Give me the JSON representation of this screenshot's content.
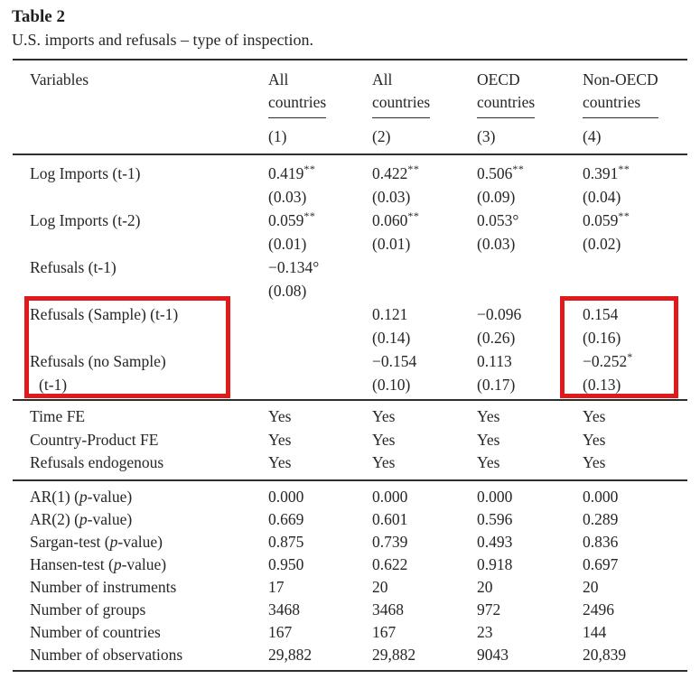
{
  "page": {
    "title": "Table 2",
    "caption": "U.S. imports and refusals – type of inspection."
  },
  "header": {
    "variables": "Variables",
    "cols": [
      {
        "line1": "All",
        "line2": "countries",
        "num": "(1)"
      },
      {
        "line1": "All",
        "line2": "countries",
        "num": "(2)"
      },
      {
        "line1": "OECD",
        "line2": "countries",
        "num": "(3)"
      },
      {
        "line1": "Non-OECD",
        "line2": "countries",
        "num": "(4)"
      }
    ]
  },
  "coef_rows": [
    {
      "label": "Log Imports (t-1)",
      "label2": "",
      "cells": [
        {
          "coef": "0.419",
          "sup": "**",
          "se": "(0.03)"
        },
        {
          "coef": "0.422",
          "sup": "**",
          "se": "(0.03)"
        },
        {
          "coef": "0.506",
          "sup": "**",
          "se": "(0.09)"
        },
        {
          "coef": "0.391",
          "sup": "**",
          "se": "(0.04)"
        }
      ]
    },
    {
      "label": "Log Imports (t-2)",
      "label2": "",
      "cells": [
        {
          "coef": "0.059",
          "sup": "**",
          "se": "(0.01)"
        },
        {
          "coef": "0.060",
          "sup": "**",
          "se": "(0.01)"
        },
        {
          "coef": "0.053°",
          "sup": "",
          "se": "(0.03)"
        },
        {
          "coef": "0.059",
          "sup": "**",
          "se": "(0.02)"
        }
      ]
    },
    {
      "label": "Refusals (t-1)",
      "label2": "",
      "cells": [
        {
          "coef": "−0.134°",
          "sup": "",
          "se": "(0.08)"
        },
        {
          "coef": "",
          "sup": "",
          "se": ""
        },
        {
          "coef": "",
          "sup": "",
          "se": ""
        },
        {
          "coef": "",
          "sup": "",
          "se": ""
        }
      ]
    },
    {
      "label": "Refusals (Sample) (t-1)",
      "label2": "",
      "cells": [
        {
          "coef": "",
          "sup": "",
          "se": ""
        },
        {
          "coef": "0.121",
          "sup": "",
          "se": "(0.14)"
        },
        {
          "coef": "−0.096",
          "sup": "",
          "se": "(0.26)"
        },
        {
          "coef": "0.154",
          "sup": "",
          "se": "(0.16)"
        }
      ]
    },
    {
      "label": "Refusals (no Sample)",
      "label2": "(t-1)",
      "cells": [
        {
          "coef": "",
          "sup": "",
          "se": ""
        },
        {
          "coef": "−0.154",
          "sup": "",
          "se": "(0.10)"
        },
        {
          "coef": "0.113",
          "sup": "",
          "se": "(0.17)"
        },
        {
          "coef": "−0.252",
          "sup": "*",
          "se": "(0.13)"
        }
      ]
    }
  ],
  "fe_rows": [
    {
      "label": "Time FE",
      "values": [
        "Yes",
        "Yes",
        "Yes",
        "Yes"
      ]
    },
    {
      "label": "Country-Product FE",
      "values": [
        "Yes",
        "Yes",
        "Yes",
        "Yes"
      ]
    },
    {
      "label": "Refusals endogenous",
      "values": [
        "Yes",
        "Yes",
        "Yes",
        "Yes"
      ]
    }
  ],
  "stat_rows": [
    {
      "pre": "AR(1) (",
      "it": "p",
      "post": "-value)",
      "values": [
        "0.000",
        "0.000",
        "0.000",
        "0.000"
      ]
    },
    {
      "pre": "AR(2) (",
      "it": "p",
      "post": "-value)",
      "values": [
        "0.669",
        "0.601",
        "0.596",
        "0.289"
      ]
    },
    {
      "pre": "Sargan-test (",
      "it": "p",
      "post": "-value)",
      "values": [
        "0.875",
        "0.739",
        "0.493",
        "0.836"
      ]
    },
    {
      "pre": "Hansen-test (",
      "it": "p",
      "post": "-value)",
      "values": [
        "0.950",
        "0.622",
        "0.918",
        "0.697"
      ]
    },
    {
      "pre": "Number of instruments",
      "it": "",
      "post": "",
      "values": [
        "17",
        "20",
        "20",
        "20"
      ]
    },
    {
      "pre": "Number of groups",
      "it": "",
      "post": "",
      "values": [
        "3468",
        "3468",
        "972",
        "2496"
      ]
    },
    {
      "pre": "Number of countries",
      "it": "",
      "post": "",
      "values": [
        "167",
        "167",
        "23",
        "144"
      ]
    },
    {
      "pre": "Number of observations",
      "it": "",
      "post": "",
      "values": [
        "29,882",
        "29,882",
        "9043",
        "20,839"
      ]
    }
  ],
  "annotations": {
    "highlight_color": "#e01a1a"
  }
}
